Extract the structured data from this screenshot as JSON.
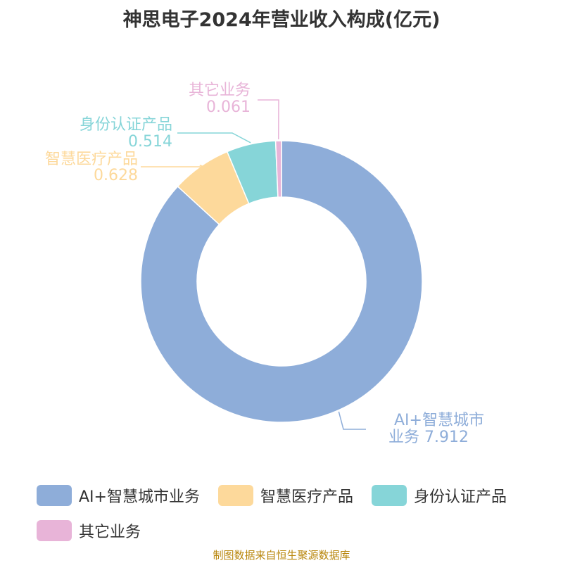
{
  "chart_data": {
    "type": "pie",
    "variant": "donut",
    "title": "神思电子2024年营业收入构成(亿元)",
    "unit": "亿元",
    "categories": [
      "AI+智慧城市业务",
      "智慧医疗产品",
      "身份认证产品",
      "其它业务"
    ],
    "values": [
      7.912,
      0.628,
      0.514,
      0.061
    ],
    "colors": [
      "#8eadd9",
      "#fdd99b",
      "#86d5d8",
      "#e8b4d8"
    ],
    "label_lines": [
      [
        "AI+智慧城市",
        "业务 7.912"
      ],
      [
        "智慧医疗产品",
        "0.628"
      ],
      [
        "身份认证产品",
        "0.514"
      ],
      [
        "其它业务",
        "0.061"
      ]
    ],
    "legend_position": "bottom"
  },
  "source": "制图数据来自恒生聚源数据库"
}
